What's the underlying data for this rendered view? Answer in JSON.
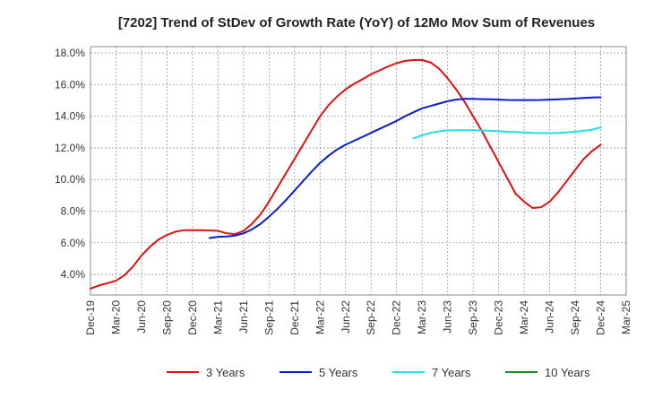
{
  "chart_data": {
    "type": "line",
    "title": "[7202]  Trend of StDev of Growth Rate (YoY) of 12Mo Mov Sum of Revenues",
    "xlabel": "",
    "ylabel": "",
    "x_ticks": [
      "Dec-19",
      "Mar-20",
      "Jun-20",
      "Sep-20",
      "Dec-20",
      "Mar-21",
      "Jun-21",
      "Sep-21",
      "Dec-21",
      "Mar-22",
      "Jun-22",
      "Sep-22",
      "Dec-22",
      "Mar-23",
      "Jun-23",
      "Sep-23",
      "Dec-23",
      "Mar-24",
      "Jun-24",
      "Sep-24",
      "Dec-24",
      "Mar-25"
    ],
    "y_ticks": [
      "4.0%",
      "6.0%",
      "8.0%",
      "10.0%",
      "12.0%",
      "14.0%",
      "16.0%",
      "18.0%"
    ],
    "y_tick_values": [
      4,
      6,
      8,
      10,
      12,
      14,
      16,
      18
    ],
    "ylim": [
      2.7,
      18.4
    ],
    "grid": true,
    "legend_position": "bottom",
    "series": [
      {
        "name": "3 Years",
        "color": "#dd1111",
        "x": [
          0,
          0.333,
          0.667,
          1,
          1.333,
          1.667,
          2,
          2.333,
          2.667,
          3,
          3.333,
          3.667,
          4,
          4.333,
          4.667,
          5,
          5.333,
          5.667,
          6,
          6.333,
          6.667,
          7,
          7.333,
          7.667,
          8,
          8.333,
          8.667,
          9,
          9.333,
          9.667,
          10,
          10.333,
          10.667,
          11,
          11.333,
          11.667,
          12,
          12.333,
          12.667,
          13,
          13.333,
          13.667,
          14,
          14.333,
          14.667,
          15,
          15.333,
          15.667,
          16,
          16.333,
          16.667,
          17,
          17.333,
          17.667,
          18,
          18.333,
          18.667,
          19,
          19.333,
          19.667,
          20
        ],
        "values": [
          3.1,
          3.3,
          3.45,
          3.6,
          3.95,
          4.5,
          5.2,
          5.75,
          6.2,
          6.5,
          6.7,
          6.8,
          6.8,
          6.8,
          6.78,
          6.75,
          6.6,
          6.55,
          6.75,
          7.2,
          7.8,
          8.6,
          9.5,
          10.4,
          11.3,
          12.2,
          13.1,
          14.0,
          14.7,
          15.25,
          15.7,
          16.05,
          16.35,
          16.65,
          16.9,
          17.15,
          17.35,
          17.5,
          17.55,
          17.55,
          17.4,
          17.0,
          16.4,
          15.7,
          14.9,
          14.0,
          13.1,
          12.1,
          11.1,
          10.1,
          9.1,
          8.6,
          8.2,
          8.25,
          8.6,
          9.2,
          9.9,
          10.6,
          11.3,
          11.8,
          12.2
        ]
      },
      {
        "name": "5 Years",
        "color": "#0a1ccc",
        "x": [
          4.667,
          5,
          5.333,
          5.667,
          6,
          6.333,
          6.667,
          7,
          7.333,
          7.667,
          8,
          8.333,
          8.667,
          9,
          9.333,
          9.667,
          10,
          10.333,
          10.667,
          11,
          11.333,
          11.667,
          12,
          12.333,
          12.667,
          13,
          13.333,
          13.667,
          14,
          14.333,
          14.667,
          15,
          15.333,
          15.667,
          16,
          16.333,
          16.667,
          17,
          17.333,
          17.667,
          18,
          18.333,
          18.667,
          19,
          19.333,
          19.667,
          20
        ],
        "values": [
          6.3,
          6.38,
          6.4,
          6.45,
          6.6,
          6.85,
          7.2,
          7.65,
          8.15,
          8.7,
          9.3,
          9.9,
          10.5,
          11.05,
          11.5,
          11.9,
          12.2,
          12.45,
          12.7,
          12.95,
          13.2,
          13.45,
          13.7,
          14.0,
          14.25,
          14.5,
          14.65,
          14.8,
          14.95,
          15.05,
          15.1,
          15.1,
          15.08,
          15.07,
          15.05,
          15.03,
          15.02,
          15.02,
          15.02,
          15.03,
          15.05,
          15.07,
          15.09,
          15.12,
          15.15,
          15.18,
          15.2
        ]
      },
      {
        "name": "7 Years",
        "color": "#22ddee",
        "x": [
          12.667,
          13,
          13.333,
          13.667,
          14,
          14.333,
          14.667,
          15,
          15.333,
          15.667,
          16,
          16.333,
          16.667,
          17,
          17.333,
          17.667,
          18,
          18.333,
          18.667,
          19,
          19.333,
          19.667,
          20
        ],
        "values": [
          12.6,
          12.8,
          12.95,
          13.05,
          13.1,
          13.12,
          13.12,
          13.12,
          13.1,
          13.08,
          13.05,
          13.02,
          13.0,
          12.97,
          12.95,
          12.93,
          12.93,
          12.95,
          12.98,
          13.02,
          13.08,
          13.15,
          13.3
        ]
      },
      {
        "name": "10 Years",
        "color": "#1a8a1a",
        "x": [],
        "values": []
      }
    ]
  }
}
